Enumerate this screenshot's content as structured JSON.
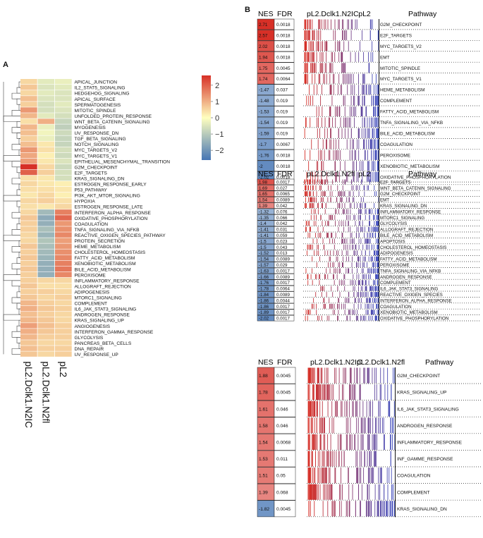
{
  "panel_a": {
    "letter": "A",
    "columns": [
      "pL2.Dclk1.N2IC",
      "pL2.Dclk1.N2fl",
      "pL2"
    ],
    "legend_ticks": [
      "2",
      "1",
      "0",
      "−1",
      "−2"
    ],
    "legend_tick_values": [
      2,
      1,
      0,
      -1,
      -2
    ],
    "colors": {
      "high": "#d73027",
      "mid": "#ffffbf",
      "low": "#4575b4"
    },
    "rows": [
      {
        "name": "APICAL_JUNCTION",
        "v": [
          0.5,
          -0.4,
          -0.3
        ]
      },
      {
        "name": "IL2_STAT5_SIGNALING",
        "v": [
          0.7,
          -0.5,
          -0.4
        ]
      },
      {
        "name": "HEDGEHOG_SIGNALING",
        "v": [
          0.5,
          -0.4,
          -0.5
        ]
      },
      {
        "name": "APICAL_SURFACE",
        "v": [
          0.8,
          -0.5,
          -0.5
        ]
      },
      {
        "name": "SPERMATOGENESIS",
        "v": [
          0.6,
          -0.6,
          -0.4
        ]
      },
      {
        "name": "MITOTIC_SPINDLE",
        "v": [
          1.3,
          -0.6,
          -0.5
        ]
      },
      {
        "name": "UNFOLDED_PROTEIN_RESPONSE",
        "v": [
          0.9,
          -0.4,
          -0.6
        ]
      },
      {
        "name": "WNT_BETA_CATENIN_SIGNALING",
        "v": [
          0.4,
          1.0,
          -0.8
        ]
      },
      {
        "name": "MYOGENESIS",
        "v": [
          0.9,
          -0.3,
          -0.9
        ]
      },
      {
        "name": "UV_RESPONSE_DN",
        "v": [
          0.8,
          -0.2,
          -0.7
        ]
      },
      {
        "name": "TGF_BETA_SIGNALING",
        "v": [
          0.6,
          -0.3,
          -0.8
        ]
      },
      {
        "name": "NOTCH_SIGNALING",
        "v": [
          0.8,
          0.3,
          -0.8
        ]
      },
      {
        "name": "MYC_TARGETS_V2",
        "v": [
          1.3,
          0.4,
          -0.6
        ]
      },
      {
        "name": "MYC_TARGETS_V1",
        "v": [
          1.1,
          0.2,
          -0.7
        ]
      },
      {
        "name": "EPITHELIAL_MESENCHYMAL_TRANSITION",
        "v": [
          1.2,
          0.3,
          -0.5
        ]
      },
      {
        "name": "G2M_CHECKPOINT",
        "v": [
          2.6,
          0.5,
          -0.7
        ]
      },
      {
        "name": "E2F_TARGETS",
        "v": [
          2.0,
          0.6,
          -0.6
        ]
      },
      {
        "name": "KRAS_SIGNALING_DN",
        "v": [
          0.4,
          0.3,
          -0.6
        ]
      },
      {
        "name": "ESTROGEN_RESPONSE_EARLY",
        "v": [
          0.5,
          0.3,
          0.2
        ]
      },
      {
        "name": "P53_PATHWAY",
        "v": [
          0.4,
          0.4,
          0.3
        ]
      },
      {
        "name": "PI3K_AKT_MTOR_SIGNALING",
        "v": [
          0.3,
          0.5,
          0.2
        ]
      },
      {
        "name": "HYPOXIA",
        "v": [
          0.5,
          0.6,
          0.4
        ]
      },
      {
        "name": "ESTROGEN_RESPONSE_LATE",
        "v": [
          0.4,
          0.3,
          0.5
        ]
      },
      {
        "name": "INTERFERON_ALPHA_RESPONSE",
        "v": [
          0.5,
          -1.3,
          1.6
        ]
      },
      {
        "name": "OXIDATIVE_PHOSPHORYLATION",
        "v": [
          0.7,
          -1.6,
          1.9
        ]
      },
      {
        "name": "COAGULATION",
        "v": [
          0.6,
          -1.5,
          1.3
        ]
      },
      {
        "name": "TNFA_SIGNALING_VIA_NFKB",
        "v": [
          0.6,
          -1.2,
          1.4
        ]
      },
      {
        "name": "REACTIVE_OXIGEN_SPECIES_PATHWAY",
        "v": [
          0.5,
          -1.4,
          1.5
        ]
      },
      {
        "name": "PROTEIN_SECRETION",
        "v": [
          0.5,
          -1.1,
          1.2
        ]
      },
      {
        "name": "HEME_METABOLISM",
        "v": [
          0.7,
          -1.2,
          1.3
        ]
      },
      {
        "name": "CHOLESTEROL_HOMEOSTASIS",
        "v": [
          0.6,
          -1.3,
          1.4
        ]
      },
      {
        "name": "FATTY_ACID_METABOLISM",
        "v": [
          0.7,
          -1.4,
          1.5
        ]
      },
      {
        "name": "XENOBIOTIC_METABOLISM",
        "v": [
          0.6,
          -1.5,
          1.6
        ]
      },
      {
        "name": "BILE_ACID_METABOLISM",
        "v": [
          0.7,
          -1.5,
          1.7
        ]
      },
      {
        "name": "PEROXISOME",
        "v": [
          0.6,
          -1.5,
          1.5
        ]
      },
      {
        "name": "INFLAMMATORY_RESPONSE",
        "v": [
          0.6,
          0.5,
          0.5
        ]
      },
      {
        "name": "ALLOGRAFT_REJECTION",
        "v": [
          0.7,
          0.4,
          0.4
        ]
      },
      {
        "name": "ADIPOGENESIS",
        "v": [
          0.6,
          0.6,
          0.5
        ]
      },
      {
        "name": "MTORC1_SIGNALING",
        "v": [
          0.7,
          0.5,
          0.6
        ]
      },
      {
        "name": "COMPLEMENT",
        "v": [
          0.9,
          0.6,
          0.5
        ]
      },
      {
        "name": "IL6_JAK_STAT3_SIGNALING",
        "v": [
          1.0,
          0.7,
          0.6
        ]
      },
      {
        "name": "ANDROGEN_RESPONSE",
        "v": [
          0.8,
          0.6,
          0.5
        ]
      },
      {
        "name": "KRAS_SIGNALING_UP",
        "v": [
          0.9,
          0.7,
          0.5
        ]
      },
      {
        "name": "ANGIOGENESIS",
        "v": [
          1.2,
          0.8,
          0.6
        ]
      },
      {
        "name": "INTERFERON_GAMMA_RESPONSE",
        "v": [
          1.0,
          0.7,
          0.6
        ]
      },
      {
        "name": "GLYCOLYSIS",
        "v": [
          0.9,
          0.6,
          0.6
        ]
      },
      {
        "name": "PANCREAS_BETA_CELLS",
        "v": [
          0.7,
          0.5,
          0.5
        ]
      },
      {
        "name": "DNA_REPAIR",
        "v": [
          0.8,
          0.6,
          0.6
        ]
      },
      {
        "name": "UV_RESPONSE_UP",
        "v": [
          0.7,
          0.5,
          0.6
        ]
      }
    ]
  },
  "panel_b": {
    "letter": "B",
    "blocks": [
      {
        "headers": {
          "nes": "NES",
          "fdr": "FDR",
          "left": "pL2.Dclk1.N2IC",
          "right": "pL2",
          "pathway": "Pathway"
        },
        "rows": [
          {
            "nes": "2.71",
            "fdr": "0.0018",
            "name": "G2M_CHECKPOINT"
          },
          {
            "nes": "2.57",
            "fdr": "0.0018",
            "name": "E2F_TARGETS"
          },
          {
            "nes": "2.02",
            "fdr": "0.0018",
            "name": "MYC_TARGETS_V2"
          },
          {
            "nes": "1.94",
            "fdr": "0.0018",
            "name": "EMT"
          },
          {
            "nes": "1.75",
            "fdr": "0.0045",
            "name": "MITOTIC_SPINDLE"
          },
          {
            "nes": "1.74",
            "fdr": "0.0064",
            "name": "MYC_TARGETS_V1"
          },
          {
            "nes": "-1.47",
            "fdr": "0.037",
            "name": "HEME_METABOLISM"
          },
          {
            "nes": "-1.48",
            "fdr": "0.019",
            "name": "COMPLEMENT"
          },
          {
            "nes": "-1.53",
            "fdr": "0.019",
            "name": "FATTY_ACID_METABOLISM"
          },
          {
            "nes": "-1.54",
            "fdr": "0.019",
            "name": "TNFA_SIGNALING_VIA_NFKB"
          },
          {
            "nes": "-1.59",
            "fdr": "0.019",
            "name": "BILE_ACID_METABOLISM"
          },
          {
            "nes": "-1.7",
            "fdr": "0.0067",
            "name": "COAGULATION"
          },
          {
            "nes": "-1.76",
            "fdr": "0.0018",
            "name": "PEROXISOME"
          },
          {
            "nes": "-2",
            "fdr": "0.0018",
            "name": "XENOBIOTIC_METABOLISM"
          },
          {
            "nes": "-2.02",
            "fdr": "0.0018",
            "name": "OXIDATIVE_PHOSPHORYLATION"
          }
        ]
      },
      {
        "headers": {
          "nes": "NES",
          "fdr": "FDR",
          "left": "pL2.Dclk1.N2fl",
          "right": "pL2",
          "pathway": "Pathway"
        },
        "rows": [
          {
            "nes": "1.98",
            "fdr": "0.0017",
            "name": "E2F_TARGETS"
          },
          {
            "nes": "1.69",
            "fdr": "0.027",
            "name": "WNT_BETA_CATENIN_SIGNALING"
          },
          {
            "nes": "1.65",
            "fdr": "0.0065",
            "name": "G2M_CHECKPOINT"
          },
          {
            "nes": "1.54",
            "fdr": "0.0089",
            "name": "EMT"
          },
          {
            "nes": "1.39",
            "fdr": "0.042",
            "name": "KRAS_SIGNALING_DN"
          },
          {
            "nes": "-1.32",
            "fdr": "0.076",
            "name": "INFLAMMATORY_RESPONSE"
          },
          {
            "nes": "-1.35",
            "fdr": "0.066",
            "name": "MTORC1_SIGNALING"
          },
          {
            "nes": "-1.4",
            "fdr": "0.042",
            "name": "GLYCOLYSIS"
          },
          {
            "nes": "-1.41",
            "fdr": "0.031",
            "name": "ALLOGRAFT_REJECTION"
          },
          {
            "nes": "-1.41",
            "fdr": "0.059",
            "name": "BILE_ACID_METABOLISM"
          },
          {
            "nes": "-1.5",
            "fdr": "0.023",
            "name": "APOPTOSIS"
          },
          {
            "nes": "-1.5",
            "fdr": "0.043",
            "name": "CHOLESTEROL_HOMEOSTASIS"
          },
          {
            "nes": "-1.52",
            "fdr": "0.013",
            "name": "ADIPOGENESIS"
          },
          {
            "nes": "-1.54",
            "fdr": "0.0089",
            "name": "FATTY_ACID_METABOLISM"
          },
          {
            "nes": "-1.57",
            "fdr": "0.029",
            "name": "PEROXISOME"
          },
          {
            "nes": "-1.63",
            "fdr": "0.0017",
            "name": "TNFA_SIGNALING_VIA_NFKB"
          },
          {
            "nes": "-1.66",
            "fdr": "0.0089",
            "name": "ANDROGEN_RESPONSE"
          },
          {
            "nes": "-1.76",
            "fdr": "0.0017",
            "name": "COMPLEMENT"
          },
          {
            "nes": "-1.78",
            "fdr": "0.0064",
            "name": "IL6_JAK_STAT3_SIGNALING"
          },
          {
            "nes": "-1.84",
            "fdr": "0.0089",
            "name": "REACTIVE_OXIGEN_SPECIES"
          },
          {
            "nes": "-1.86",
            "fdr": "0.0044",
            "name": "INTERFERON_ALPHA_RESPONSE"
          },
          {
            "nes": "-1.86",
            "fdr": "0.0017",
            "name": "COAGULATION"
          },
          {
            "nes": "-1.89",
            "fdr": "0.0017",
            "name": "XENOBIOTIC_METABOLISM"
          },
          {
            "nes": "-2.02",
            "fdr": "0.0017",
            "name": "OXIDATIVE_PHOSPHORYLATION"
          }
        ]
      },
      {
        "headers": {
          "nes": "NES",
          "fdr": "FDR",
          "left": "pL2.Dclk1.N2IC",
          "right": "pL2.Dclk1.N2fl",
          "pathway": "Pathway"
        },
        "rows": [
          {
            "nes": "1.88",
            "fdr": "0.0045",
            "name": "G2M_CHECKPOINT"
          },
          {
            "nes": "1.78",
            "fdr": "0.0045",
            "name": "KRAS_SIGNALING_UP"
          },
          {
            "nes": "1.61",
            "fdr": "0.046",
            "name": "IL6_JAK_STAT3_SIGNALING"
          },
          {
            "nes": "1.58",
            "fdr": "0.046",
            "name": "ANDROGEN_RESPONSE"
          },
          {
            "nes": "1.54",
            "fdr": "0.0068",
            "name": "INFLAMMATORY_RESPONSE"
          },
          {
            "nes": "1.53",
            "fdr": "0.011",
            "name": "INF_GAMME_RESPONSE"
          },
          {
            "nes": "1.51",
            "fdr": "0.05",
            "name": "COAGULATION"
          },
          {
            "nes": "1.39",
            "fdr": "0.068",
            "name": "COMPLEMENT"
          },
          {
            "nes": "-1.82",
            "fdr": "0.0045",
            "name": "KRAS_SIGNALING_DN"
          }
        ]
      }
    ]
  }
}
